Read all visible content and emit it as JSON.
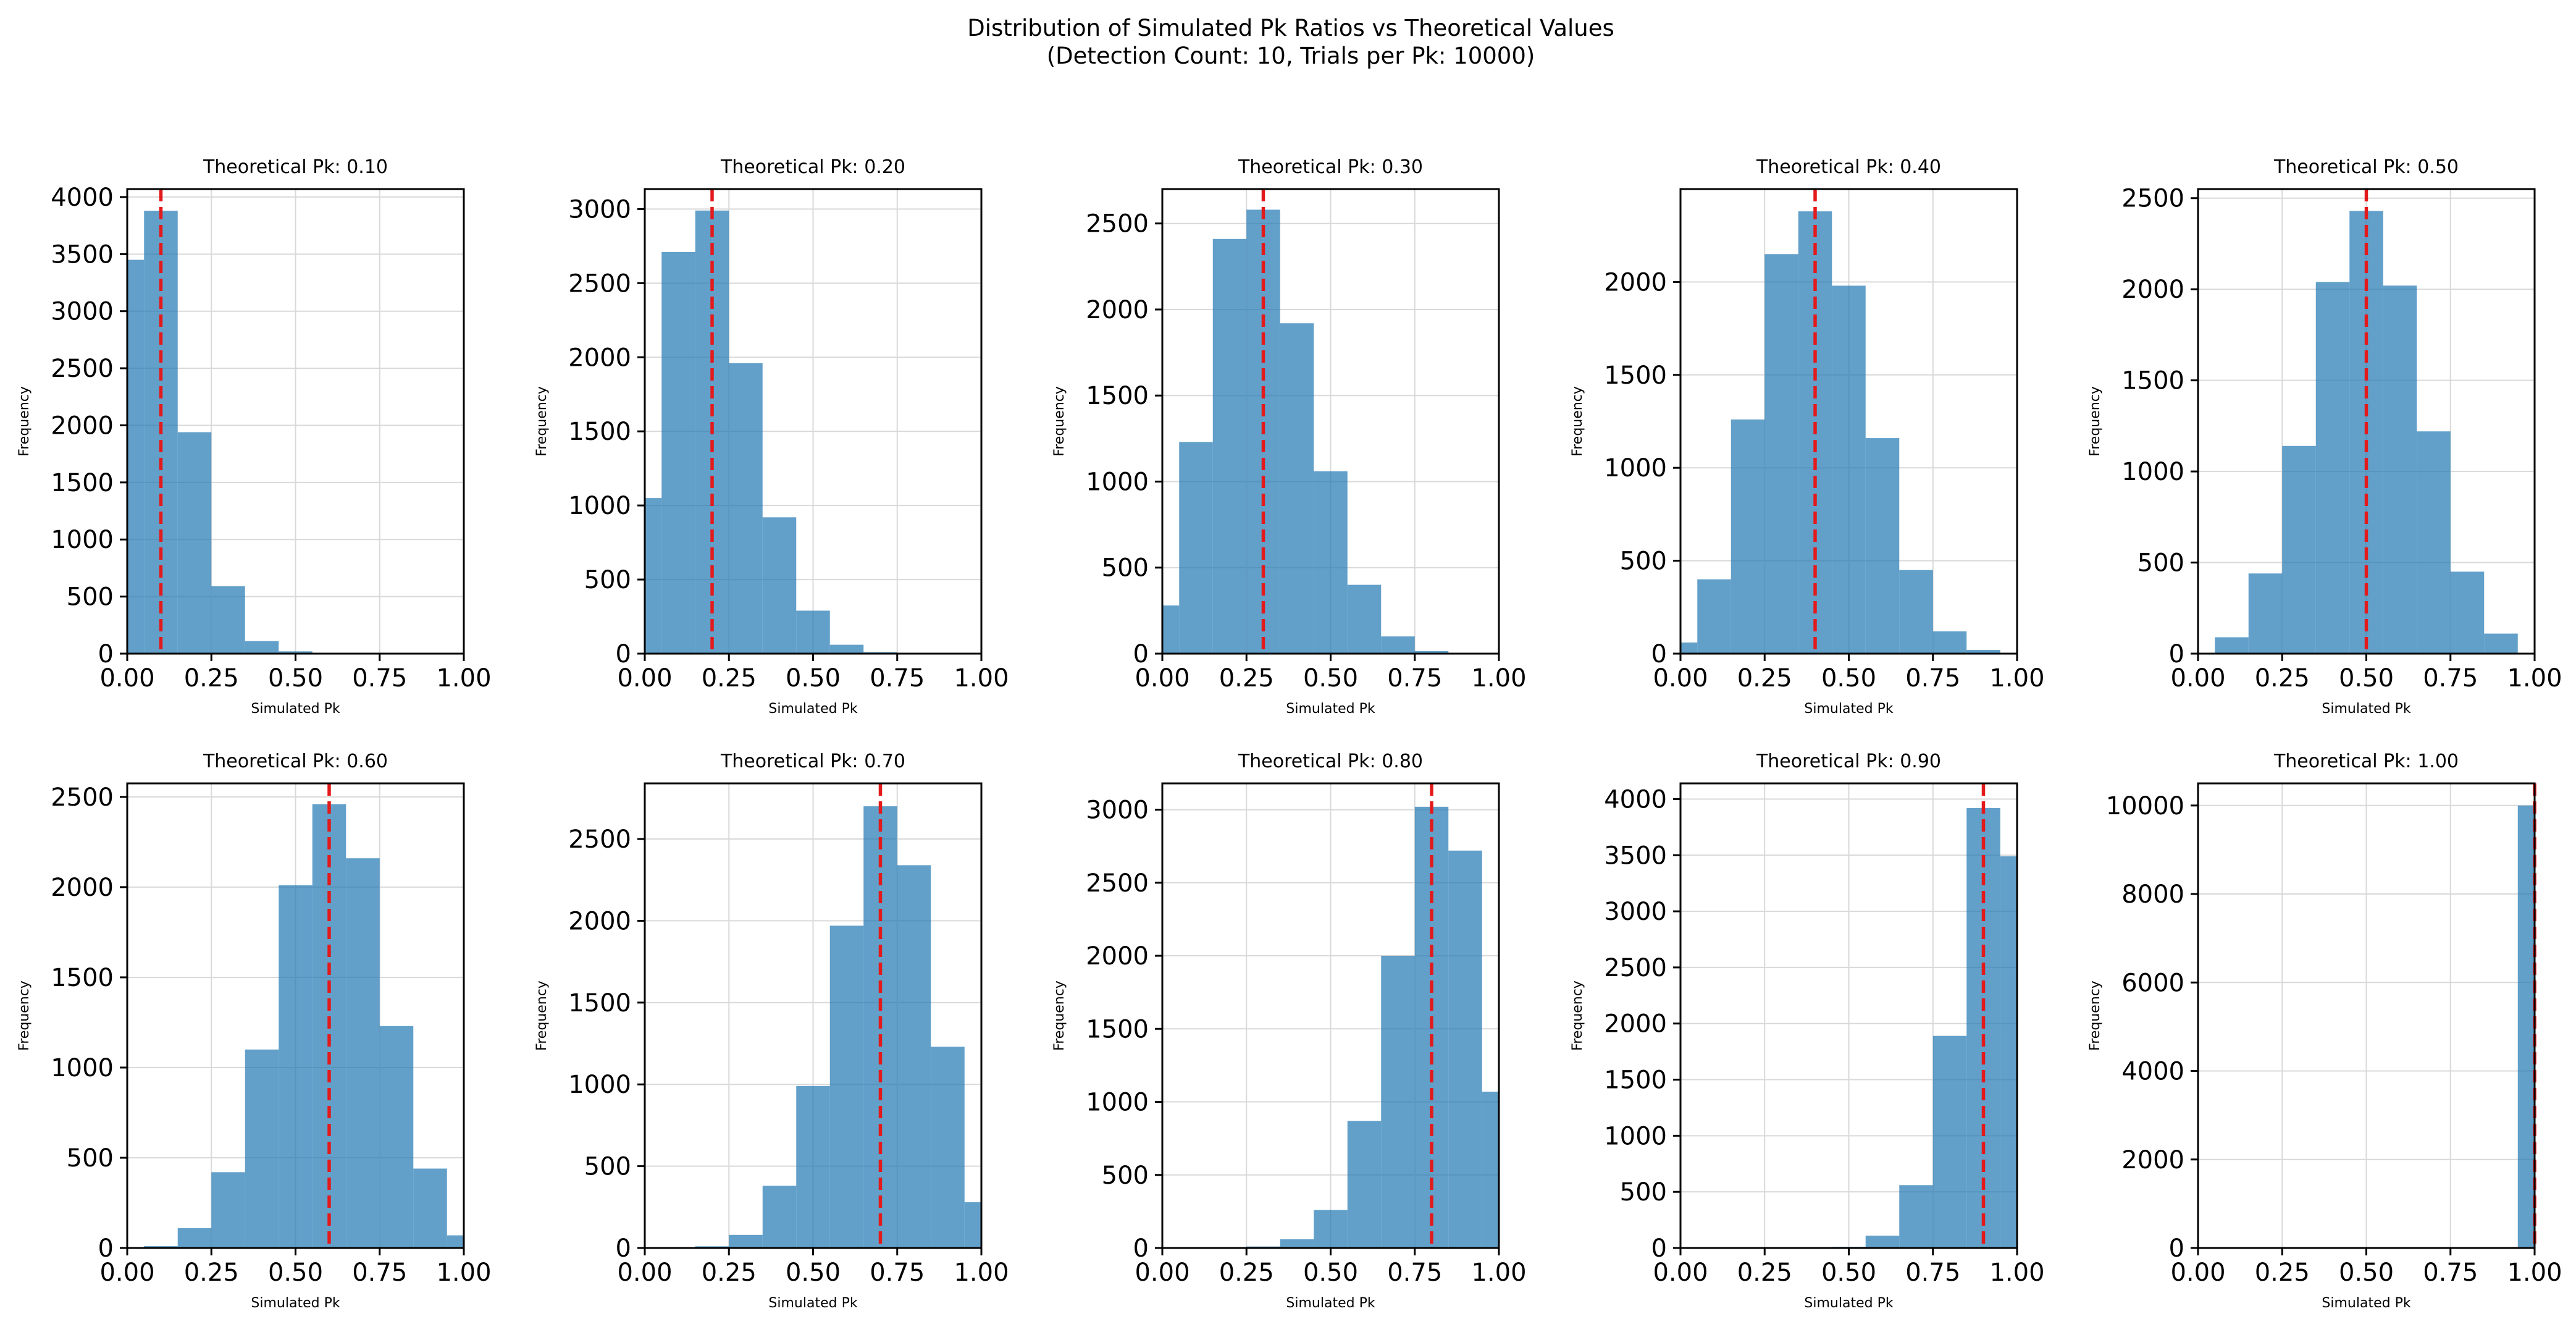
{
  "figure": {
    "title_line1": "Distribution of Simulated Pk Ratios vs Theoretical Values",
    "title_line2": "(Detection Count: 10, Trials per Pk: 10000)"
  },
  "colors": {
    "bar": "#1f77b4",
    "bar_opacity": 0.7,
    "reference_line": "#e31a1c",
    "grid": "#d9d9d9",
    "axes": "#000000"
  },
  "chart_data": [
    {
      "type": "bar",
      "title": "Theoretical Pk: 0.10",
      "xlabel": "Simulated Pk",
      "ylabel": "Frequency",
      "x_ticks": [
        "0.00",
        "0.25",
        "0.50",
        "0.75",
        "1.00"
      ],
      "xlim": [
        0,
        1
      ],
      "y_ticks": [
        "0",
        "500",
        "1000",
        "1500",
        "2000",
        "2500",
        "3000",
        "3500",
        "4000"
      ],
      "ylim": [
        0,
        4070
      ],
      "theoretical": 0.1,
      "grid": true,
      "bins": [
        {
          "x0": 0.0,
          "x1": 0.05,
          "v": 3450
        },
        {
          "x0": 0.05,
          "x1": 0.15,
          "v": 3880
        },
        {
          "x0": 0.15,
          "x1": 0.25,
          "v": 1940
        },
        {
          "x0": 0.25,
          "x1": 0.35,
          "v": 590
        },
        {
          "x0": 0.35,
          "x1": 0.45,
          "v": 110
        },
        {
          "x0": 0.45,
          "x1": 0.55,
          "v": 20
        },
        {
          "x0": 0.55,
          "x1": 0.65,
          "v": 5
        }
      ]
    },
    {
      "type": "bar",
      "title": "Theoretical Pk: 0.20",
      "xlabel": "Simulated Pk",
      "ylabel": "Frequency",
      "x_ticks": [
        "0.00",
        "0.25",
        "0.50",
        "0.75",
        "1.00"
      ],
      "xlim": [
        0,
        1
      ],
      "y_ticks": [
        "0",
        "500",
        "1000",
        "1500",
        "2000",
        "2500",
        "3000"
      ],
      "ylim": [
        0,
        3135
      ],
      "theoretical": 0.2,
      "grid": true,
      "bins": [
        {
          "x0": 0.0,
          "x1": 0.05,
          "v": 1050
        },
        {
          "x0": 0.05,
          "x1": 0.15,
          "v": 2710
        },
        {
          "x0": 0.15,
          "x1": 0.25,
          "v": 2990
        },
        {
          "x0": 0.25,
          "x1": 0.35,
          "v": 1960
        },
        {
          "x0": 0.35,
          "x1": 0.45,
          "v": 920
        },
        {
          "x0": 0.45,
          "x1": 0.55,
          "v": 290
        },
        {
          "x0": 0.55,
          "x1": 0.65,
          "v": 60
        },
        {
          "x0": 0.65,
          "x1": 0.75,
          "v": 10
        }
      ]
    },
    {
      "type": "bar",
      "title": "Theoretical Pk: 0.30",
      "xlabel": "Simulated Pk",
      "ylabel": "Frequency",
      "x_ticks": [
        "0.00",
        "0.25",
        "0.50",
        "0.75",
        "1.00"
      ],
      "xlim": [
        0,
        1
      ],
      "y_ticks": [
        "0",
        "500",
        "1000",
        "1500",
        "2000",
        "2500"
      ],
      "ylim": [
        0,
        2700
      ],
      "theoretical": 0.3,
      "grid": true,
      "bins": [
        {
          "x0": 0.0,
          "x1": 0.05,
          "v": 280
        },
        {
          "x0": 0.05,
          "x1": 0.15,
          "v": 1230
        },
        {
          "x0": 0.15,
          "x1": 0.25,
          "v": 2410
        },
        {
          "x0": 0.25,
          "x1": 0.35,
          "v": 2580
        },
        {
          "x0": 0.35,
          "x1": 0.45,
          "v": 1920
        },
        {
          "x0": 0.45,
          "x1": 0.55,
          "v": 1060
        },
        {
          "x0": 0.55,
          "x1": 0.65,
          "v": 400
        },
        {
          "x0": 0.65,
          "x1": 0.75,
          "v": 100
        },
        {
          "x0": 0.75,
          "x1": 0.85,
          "v": 15
        }
      ]
    },
    {
      "type": "bar",
      "title": "Theoretical Pk: 0.40",
      "xlabel": "Simulated Pk",
      "ylabel": "Frequency",
      "x_ticks": [
        "0.00",
        "0.25",
        "0.50",
        "0.75",
        "1.00"
      ],
      "xlim": [
        0,
        1
      ],
      "y_ticks": [
        "0",
        "500",
        "1000",
        "1500",
        "2000"
      ],
      "ylim": [
        0,
        2500
      ],
      "theoretical": 0.4,
      "grid": true,
      "bins": [
        {
          "x0": 0.0,
          "x1": 0.05,
          "v": 60
        },
        {
          "x0": 0.05,
          "x1": 0.15,
          "v": 400
        },
        {
          "x0": 0.15,
          "x1": 0.25,
          "v": 1260
        },
        {
          "x0": 0.25,
          "x1": 0.35,
          "v": 2150
        },
        {
          "x0": 0.35,
          "x1": 0.45,
          "v": 2380
        },
        {
          "x0": 0.45,
          "x1": 0.55,
          "v": 1980
        },
        {
          "x0": 0.55,
          "x1": 0.65,
          "v": 1160
        },
        {
          "x0": 0.65,
          "x1": 0.75,
          "v": 450
        },
        {
          "x0": 0.75,
          "x1": 0.85,
          "v": 120
        },
        {
          "x0": 0.85,
          "x1": 0.95,
          "v": 20
        }
      ]
    },
    {
      "type": "bar",
      "title": "Theoretical Pk: 0.50",
      "xlabel": "Simulated Pk",
      "ylabel": "Frequency",
      "x_ticks": [
        "0.00",
        "0.25",
        "0.50",
        "0.75",
        "1.00"
      ],
      "xlim": [
        0,
        1
      ],
      "y_ticks": [
        "0",
        "500",
        "1000",
        "1500",
        "2000",
        "2500"
      ],
      "ylim": [
        0,
        2550
      ],
      "theoretical": 0.5,
      "grid": true,
      "bins": [
        {
          "x0": 0.05,
          "x1": 0.15,
          "v": 90
        },
        {
          "x0": 0.15,
          "x1": 0.25,
          "v": 440
        },
        {
          "x0": 0.25,
          "x1": 0.35,
          "v": 1140
        },
        {
          "x0": 0.35,
          "x1": 0.45,
          "v": 2040
        },
        {
          "x0": 0.45,
          "x1": 0.55,
          "v": 2430
        },
        {
          "x0": 0.55,
          "x1": 0.65,
          "v": 2020
        },
        {
          "x0": 0.65,
          "x1": 0.75,
          "v": 1220
        },
        {
          "x0": 0.75,
          "x1": 0.85,
          "v": 450
        },
        {
          "x0": 0.85,
          "x1": 0.95,
          "v": 110
        }
      ]
    },
    {
      "type": "bar",
      "title": "Theoretical Pk: 0.60",
      "xlabel": "Simulated Pk",
      "ylabel": "Frequency",
      "x_ticks": [
        "0.00",
        "0.25",
        "0.50",
        "0.75",
        "1.00"
      ],
      "xlim": [
        0,
        1
      ],
      "y_ticks": [
        "0",
        "500",
        "1000",
        "1500",
        "2000",
        "2500"
      ],
      "ylim": [
        0,
        2575
      ],
      "theoretical": 0.6,
      "grid": true,
      "bins": [
        {
          "x0": 0.05,
          "x1": 0.15,
          "v": 10
        },
        {
          "x0": 0.15,
          "x1": 0.25,
          "v": 110
        },
        {
          "x0": 0.25,
          "x1": 0.35,
          "v": 420
        },
        {
          "x0": 0.35,
          "x1": 0.45,
          "v": 1100
        },
        {
          "x0": 0.45,
          "x1": 0.55,
          "v": 2010
        },
        {
          "x0": 0.55,
          "x1": 0.65,
          "v": 2460
        },
        {
          "x0": 0.65,
          "x1": 0.75,
          "v": 2160
        },
        {
          "x0": 0.75,
          "x1": 0.85,
          "v": 1230
        },
        {
          "x0": 0.85,
          "x1": 0.95,
          "v": 440
        },
        {
          "x0": 0.95,
          "x1": 1.0,
          "v": 70
        }
      ]
    },
    {
      "type": "bar",
      "title": "Theoretical Pk: 0.70",
      "xlabel": "Simulated Pk",
      "ylabel": "Frequency",
      "x_ticks": [
        "0.00",
        "0.25",
        "0.50",
        "0.75",
        "1.00"
      ],
      "xlim": [
        0,
        1
      ],
      "y_ticks": [
        "0",
        "500",
        "1000",
        "1500",
        "2000",
        "2500"
      ],
      "ylim": [
        0,
        2840
      ],
      "theoretical": 0.7,
      "grid": true,
      "bins": [
        {
          "x0": 0.15,
          "x1": 0.25,
          "v": 10
        },
        {
          "x0": 0.25,
          "x1": 0.35,
          "v": 80
        },
        {
          "x0": 0.35,
          "x1": 0.45,
          "v": 380
        },
        {
          "x0": 0.45,
          "x1": 0.55,
          "v": 990
        },
        {
          "x0": 0.55,
          "x1": 0.65,
          "v": 1970
        },
        {
          "x0": 0.65,
          "x1": 0.75,
          "v": 2700
        },
        {
          "x0": 0.75,
          "x1": 0.85,
          "v": 2340
        },
        {
          "x0": 0.85,
          "x1": 0.95,
          "v": 1230
        },
        {
          "x0": 0.95,
          "x1": 1.0,
          "v": 280
        }
      ]
    },
    {
      "type": "bar",
      "title": "Theoretical Pk: 0.80",
      "xlabel": "Simulated Pk",
      "ylabel": "Frequency",
      "x_ticks": [
        "0.00",
        "0.25",
        "0.50",
        "0.75",
        "1.00"
      ],
      "xlim": [
        0,
        1
      ],
      "y_ticks": [
        "0",
        "500",
        "1000",
        "1500",
        "2000",
        "2500",
        "3000"
      ],
      "ylim": [
        0,
        3180
      ],
      "theoretical": 0.8,
      "grid": true,
      "bins": [
        {
          "x0": 0.25,
          "x1": 0.35,
          "v": 10
        },
        {
          "x0": 0.35,
          "x1": 0.45,
          "v": 60
        },
        {
          "x0": 0.45,
          "x1": 0.55,
          "v": 260
        },
        {
          "x0": 0.55,
          "x1": 0.65,
          "v": 870
        },
        {
          "x0": 0.65,
          "x1": 0.75,
          "v": 2000
        },
        {
          "x0": 0.75,
          "x1": 0.85,
          "v": 3020
        },
        {
          "x0": 0.85,
          "x1": 0.95,
          "v": 2720
        },
        {
          "x0": 0.95,
          "x1": 1.0,
          "v": 1070
        }
      ]
    },
    {
      "type": "bar",
      "title": "Theoretical Pk: 0.90",
      "xlabel": "Simulated Pk",
      "ylabel": "Frequency",
      "x_ticks": [
        "0.00",
        "0.25",
        "0.50",
        "0.75",
        "1.00"
      ],
      "xlim": [
        0,
        1
      ],
      "y_ticks": [
        "0",
        "500",
        "1000",
        "1500",
        "2000",
        "2500",
        "3000",
        "3500",
        "4000"
      ],
      "ylim": [
        0,
        4140
      ],
      "theoretical": 0.9,
      "grid": true,
      "bins": [
        {
          "x0": 0.45,
          "x1": 0.55,
          "v": 10
        },
        {
          "x0": 0.55,
          "x1": 0.65,
          "v": 110
        },
        {
          "x0": 0.65,
          "x1": 0.75,
          "v": 560
        },
        {
          "x0": 0.75,
          "x1": 0.85,
          "v": 1890
        },
        {
          "x0": 0.85,
          "x1": 0.95,
          "v": 3920
        },
        {
          "x0": 0.95,
          "x1": 1.0,
          "v": 3490
        }
      ]
    },
    {
      "type": "bar",
      "title": "Theoretical Pk: 1.00",
      "xlabel": "Simulated Pk",
      "ylabel": "Frequency",
      "x_ticks": [
        "0.00",
        "0.25",
        "0.50",
        "0.75",
        "1.00"
      ],
      "xlim": [
        0,
        1
      ],
      "y_ticks": [
        "0",
        "2000",
        "4000",
        "6000",
        "8000",
        "10000"
      ],
      "ylim": [
        0,
        10500
      ],
      "theoretical": 1.0,
      "grid": true,
      "bins": [
        {
          "x0": 0.95,
          "x1": 1.0,
          "v": 10000
        }
      ]
    }
  ]
}
